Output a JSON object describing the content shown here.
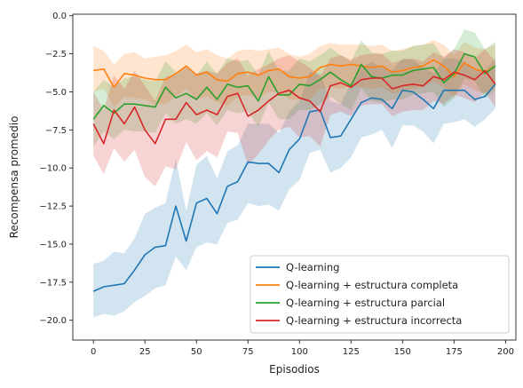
{
  "chart_data": {
    "type": "line",
    "title": "",
    "xlabel": "Episodios",
    "ylabel": "Recompensa promedio",
    "xlim": [
      -10,
      205
    ],
    "ylim": [
      -21.3,
      0.1
    ],
    "xticks": [
      0,
      25,
      50,
      75,
      100,
      125,
      150,
      175,
      200
    ],
    "yticks": [
      0.0,
      -2.5,
      -5.0,
      -7.5,
      -10.0,
      -12.5,
      -15.0,
      -17.5,
      -20.0
    ],
    "ytick_labels": [
      "0.0",
      "−2.5",
      "−5.0",
      "−7.5",
      "−10.0",
      "−12.5",
      "−15.0",
      "−17.5",
      "−20.0"
    ],
    "grid": false,
    "legend_position": "lower-right",
    "x": [
      0,
      5,
      10,
      15,
      20,
      25,
      30,
      35,
      40,
      45,
      50,
      55,
      60,
      65,
      70,
      75,
      80,
      85,
      90,
      95,
      100,
      105,
      110,
      115,
      120,
      125,
      130,
      135,
      140,
      145,
      150,
      155,
      160,
      165,
      170,
      175,
      180,
      185,
      190,
      195
    ],
    "series": [
      {
        "name": "Q-learning",
        "color": "#1f77b4",
        "values": [
          -18.1,
          -17.8,
          -17.7,
          -17.6,
          -16.7,
          -15.7,
          -15.2,
          -15.1,
          -12.5,
          -14.8,
          -12.3,
          -12.0,
          -13.0,
          -11.2,
          -10.9,
          -9.6,
          -9.7,
          -9.7,
          -10.3,
          -8.8,
          -8.1,
          -6.3,
          -6.2,
          -8.0,
          -7.9,
          -6.8,
          -5.7,
          -5.4,
          -5.5,
          -6.1,
          -4.9,
          -5.0,
          -5.5,
          -6.1,
          -4.9,
          -4.9,
          -4.9,
          -5.5,
          -5.3,
          -4.5
        ],
        "lower": [
          -19.8,
          -19.6,
          -19.7,
          -19.4,
          -18.8,
          -18.4,
          -17.9,
          -17.7,
          -15.8,
          -16.7,
          -15.2,
          -14.9,
          -15.0,
          -13.6,
          -13.4,
          -12.3,
          -12.5,
          -12.4,
          -12.8,
          -11.4,
          -10.8,
          -9.0,
          -8.8,
          -10.3,
          -10.0,
          -9.3,
          -8.0,
          -7.8,
          -7.5,
          -8.7,
          -7.2,
          -7.2,
          -7.6,
          -8.4,
          -7.1,
          -7.0,
          -6.8,
          -7.3,
          -6.8,
          -6.1
        ],
        "upper": [
          -16.3,
          -16.1,
          -15.5,
          -15.6,
          -14.6,
          -13.0,
          -12.6,
          -12.3,
          -9.4,
          -12.8,
          -9.8,
          -9.2,
          -10.7,
          -8.9,
          -8.5,
          -7.1,
          -7.1,
          -7.1,
          -7.7,
          -6.3,
          -5.6,
          -3.7,
          -3.8,
          -5.6,
          -5.8,
          -4.4,
          -3.4,
          -3.0,
          -3.4,
          -3.6,
          -2.8,
          -2.9,
          -3.4,
          -3.8,
          -2.8,
          -2.8,
          -3.0,
          -3.6,
          -3.6,
          -2.8
        ]
      },
      {
        "name": "Q-learning + estructura completa",
        "color": "#ff7f0e",
        "values": [
          -3.6,
          -3.5,
          -4.7,
          -3.8,
          -3.9,
          -4.1,
          -4.2,
          -4.2,
          -3.8,
          -3.3,
          -3.9,
          -3.7,
          -4.2,
          -4.3,
          -3.8,
          -3.7,
          -3.9,
          -3.6,
          -3.5,
          -4.0,
          -4.1,
          -4.0,
          -3.4,
          -3.2,
          -3.3,
          -3.2,
          -3.3,
          -3.4,
          -3.3,
          -3.7,
          -3.6,
          -3.4,
          -3.3,
          -2.9,
          -3.3,
          -4.0,
          -3.1,
          -3.5,
          -3.7,
          -3.3
        ],
        "lower": [
          -5.0,
          -4.8,
          -6.0,
          -5.3,
          -5.4,
          -5.5,
          -5.8,
          -5.8,
          -5.3,
          -4.8,
          -5.5,
          -5.3,
          -5.7,
          -5.9,
          -5.3,
          -5.2,
          -5.4,
          -5.0,
          -5.0,
          -5.5,
          -5.5,
          -5.5,
          -4.8,
          -4.7,
          -4.8,
          -4.6,
          -4.7,
          -4.8,
          -4.7,
          -5.1,
          -5.0,
          -4.8,
          -4.7,
          -4.3,
          -4.7,
          -5.4,
          -4.5,
          -4.9,
          -5.1,
          -4.7
        ],
        "upper": [
          -2.0,
          -2.3,
          -3.2,
          -2.5,
          -2.4,
          -2.8,
          -2.7,
          -2.6,
          -2.3,
          -1.9,
          -2.4,
          -2.2,
          -2.6,
          -2.8,
          -2.3,
          -2.2,
          -2.3,
          -2.2,
          -2.1,
          -2.5,
          -2.7,
          -2.5,
          -2.0,
          -1.8,
          -1.9,
          -1.9,
          -1.9,
          -2.0,
          -1.9,
          -2.3,
          -2.2,
          -2.0,
          -1.9,
          -1.6,
          -1.9,
          -2.6,
          -1.7,
          -2.1,
          -2.2,
          -1.9
        ]
      },
      {
        "name": "Q-learning + estructura parcial",
        "color": "#2ca02c",
        "values": [
          -6.8,
          -5.9,
          -6.4,
          -5.8,
          -5.8,
          -5.9,
          -6.0,
          -4.7,
          -5.4,
          -5.1,
          -5.5,
          -4.7,
          -5.5,
          -4.5,
          -4.7,
          -4.6,
          -5.6,
          -4.0,
          -5.2,
          -5.2,
          -4.5,
          -4.6,
          -4.2,
          -3.7,
          -4.2,
          -4.6,
          -3.2,
          -4.0,
          -4.1,
          -3.9,
          -3.9,
          -3.6,
          -3.5,
          -3.4,
          -4.4,
          -3.8,
          -2.5,
          -2.7,
          -3.8,
          -3.3
        ],
        "lower": [
          -8.6,
          -7.6,
          -8.1,
          -7.5,
          -7.6,
          -7.6,
          -7.7,
          -6.4,
          -7.1,
          -6.8,
          -7.1,
          -6.4,
          -7.2,
          -6.2,
          -6.4,
          -6.3,
          -7.3,
          -5.7,
          -6.8,
          -6.8,
          -6.2,
          -6.2,
          -5.8,
          -5.3,
          -5.8,
          -6.2,
          -4.8,
          -5.6,
          -5.7,
          -5.5,
          -5.5,
          -5.2,
          -5.1,
          -5.0,
          -6.0,
          -5.4,
          -4.1,
          -4.3,
          -5.4,
          -4.9
        ],
        "upper": [
          -5.0,
          -4.2,
          -4.7,
          -4.1,
          -4.0,
          -4.2,
          -4.3,
          -3.0,
          -3.7,
          -3.4,
          -3.9,
          -3.0,
          -3.8,
          -2.8,
          -3.0,
          -2.9,
          -3.9,
          -2.3,
          -3.6,
          -3.6,
          -2.8,
          -3.0,
          -2.6,
          -2.1,
          -2.6,
          -3.0,
          -1.6,
          -2.4,
          -2.5,
          -2.3,
          -2.3,
          -2.0,
          -1.9,
          -1.8,
          -2.8,
          -2.2,
          -0.9,
          -1.1,
          -2.2,
          -1.7
        ]
      },
      {
        "name": "Q-learning + estructura incorrecta",
        "color": "#d62728",
        "values": [
          -7.1,
          -8.4,
          -6.2,
          -7.1,
          -6.0,
          -7.5,
          -8.4,
          -6.8,
          -6.8,
          -5.7,
          -6.5,
          -6.2,
          -6.5,
          -5.3,
          -5.1,
          -6.6,
          -6.2,
          -5.6,
          -5.1,
          -4.9,
          -5.4,
          -5.6,
          -6.3,
          -4.6,
          -4.4,
          -4.7,
          -4.2,
          -4.1,
          -4.1,
          -4.8,
          -4.6,
          -4.5,
          -4.6,
          -4.0,
          -4.2,
          -3.7,
          -3.9,
          -4.2,
          -3.6,
          -4.5
        ],
        "lower": [
          -9.2,
          -10.4,
          -8.7,
          -9.6,
          -8.8,
          -10.6,
          -11.2,
          -9.9,
          -10.1,
          -8.3,
          -9.5,
          -8.9,
          -9.3,
          -7.6,
          -7.7,
          -9.8,
          -9.1,
          -8.2,
          -7.5,
          -7.3,
          -8.0,
          -7.9,
          -8.6,
          -6.5,
          -6.3,
          -6.6,
          -5.9,
          -5.8,
          -5.8,
          -6.6,
          -6.3,
          -6.2,
          -6.2,
          -5.6,
          -5.8,
          -5.2,
          -5.4,
          -5.7,
          -5.0,
          -6.0
        ],
        "upper": [
          -5.0,
          -6.2,
          -3.9,
          -4.8,
          -3.6,
          -4.6,
          -5.6,
          -4.0,
          -3.9,
          -3.3,
          -3.8,
          -3.6,
          -3.8,
          -3.1,
          -2.8,
          -3.9,
          -3.5,
          -3.2,
          -2.8,
          -2.6,
          -3.0,
          -3.4,
          -4.0,
          -2.8,
          -2.6,
          -2.9,
          -2.6,
          -2.5,
          -2.5,
          -3.1,
          -2.9,
          -2.8,
          -3.0,
          -2.4,
          -2.7,
          -2.2,
          -2.4,
          -2.8,
          -2.2,
          -3.0
        ]
      }
    ]
  }
}
